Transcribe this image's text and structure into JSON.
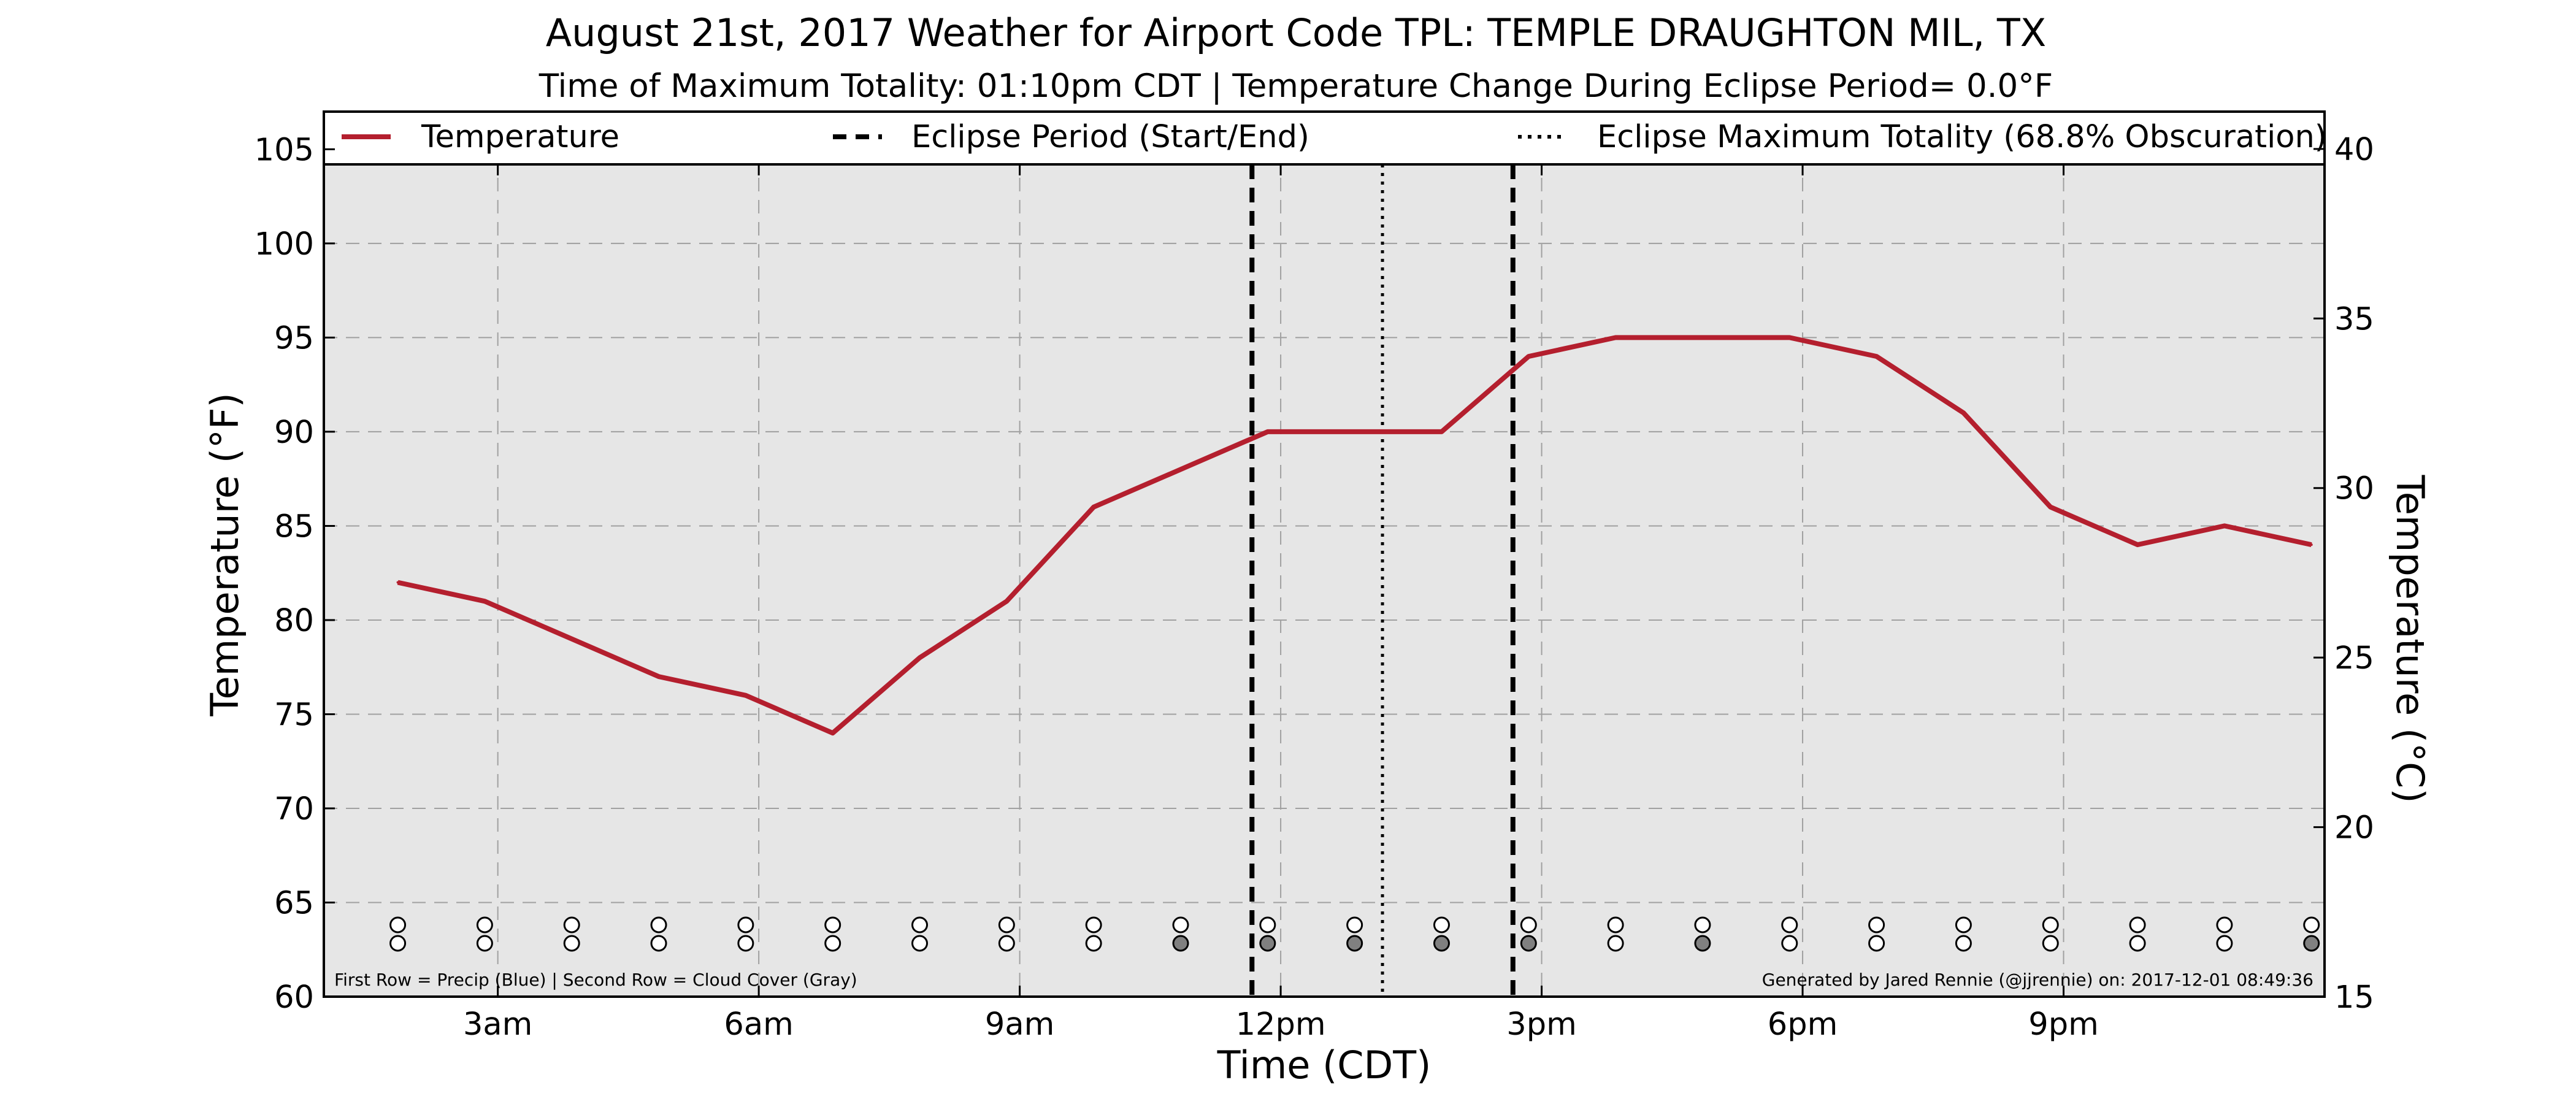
{
  "colors": {
    "line": "#B41F2E",
    "plot_bg": "#E6E6E6",
    "grid": "#A0A0A0",
    "cloud_filled": "#808080",
    "empty_circle": "#FFFFFF"
  },
  "chart_data": {
    "type": "line",
    "title": "August 21st, 2017 Weather for Airport Code TPL: TEMPLE DRAUGHTON MIL, TX",
    "subtitle": "Time of Maximum Totality: 01:10pm CDT | Temperature Change During Eclipse Period= 0.0°F",
    "xlabel": "Time (CDT)",
    "ylabel": "Temperature (°F)",
    "ylabel_right": "Temperature (°C)",
    "x_unit": "hours after midnight CDT",
    "xlim": [
      1.0,
      24.0
    ],
    "ylim": [
      60,
      107
    ],
    "ylim_right": [
      15,
      41.1
    ],
    "x_ticks": [
      {
        "value": 3,
        "label": "3am"
      },
      {
        "value": 6,
        "label": "6am"
      },
      {
        "value": 9,
        "label": "9am"
      },
      {
        "value": 12,
        "label": "12pm"
      },
      {
        "value": 15,
        "label": "3pm"
      },
      {
        "value": 18,
        "label": "6pm"
      },
      {
        "value": 21,
        "label": "9pm"
      }
    ],
    "y_ticks": [
      60,
      65,
      70,
      75,
      80,
      85,
      90,
      95,
      100,
      105
    ],
    "y_ticks_right": [
      15,
      20,
      25,
      30,
      35,
      40
    ],
    "grid": true,
    "legend": {
      "placement": "top",
      "entries": [
        {
          "label": "Temperature",
          "style": "solid"
        },
        {
          "label": "Eclipse Period (Start/End)",
          "style": "dashed"
        },
        {
          "label": "Eclipse Maximum Totality (68.8% Obscuration)",
          "style": "dotted"
        }
      ]
    },
    "series": [
      {
        "name": "Temperature",
        "x": [
          1.85,
          2.85,
          3.85,
          4.85,
          5.85,
          6.85,
          7.85,
          8.85,
          9.85,
          10.85,
          11.85,
          12.85,
          13.85,
          14.85,
          15.85,
          16.85,
          17.85,
          18.85,
          19.85,
          20.85,
          21.85,
          22.85,
          23.85
        ],
        "y": [
          82,
          81,
          79,
          77,
          76,
          74,
          78,
          81,
          86,
          88,
          90,
          90,
          90,
          94,
          95,
          95,
          95,
          94,
          91,
          86,
          84,
          85,
          84
        ]
      }
    ],
    "eclipse_start": 11.67,
    "eclipse_end": 14.67,
    "eclipse_max": 13.17,
    "precip_row": {
      "x": [
        1.85,
        2.85,
        3.85,
        4.85,
        5.85,
        6.85,
        7.85,
        8.85,
        9.85,
        10.85,
        11.85,
        12.85,
        13.85,
        14.85,
        15.85,
        16.85,
        17.85,
        18.85,
        19.85,
        20.85,
        21.85,
        22.85,
        23.85
      ],
      "filled": [
        false,
        false,
        false,
        false,
        false,
        false,
        false,
        false,
        false,
        false,
        false,
        false,
        false,
        false,
        false,
        false,
        false,
        false,
        false,
        false,
        false,
        false,
        false
      ]
    },
    "cloud_row": {
      "x": [
        1.85,
        2.85,
        3.85,
        4.85,
        5.85,
        6.85,
        7.85,
        8.85,
        9.85,
        10.85,
        11.85,
        12.85,
        13.85,
        14.85,
        15.85,
        16.85,
        17.85,
        18.85,
        19.85,
        20.85,
        21.85,
        22.85,
        23.85
      ],
      "filled": [
        false,
        false,
        false,
        false,
        false,
        false,
        false,
        false,
        false,
        true,
        true,
        true,
        true,
        true,
        false,
        true,
        false,
        false,
        false,
        false,
        false,
        false,
        true
      ]
    },
    "annotation_left": "First Row = Precip (Blue) | Second Row = Cloud Cover (Gray)",
    "annotation_right": "Generated by Jared Rennie (@jjrennie) on: 2017-12-01 08:49:36"
  }
}
